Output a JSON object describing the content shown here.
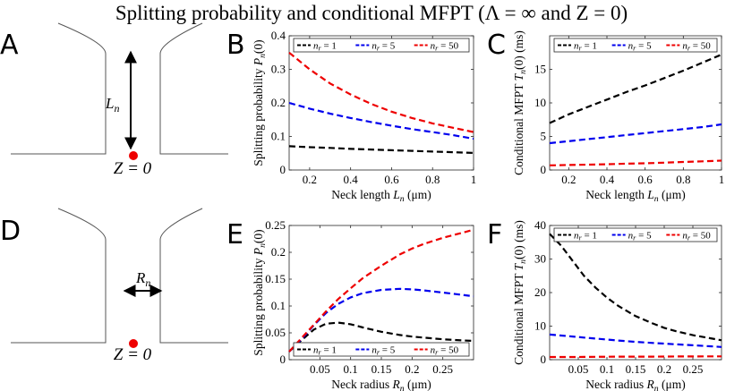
{
  "title": "Splitting probability and conditional MFPT (Λ = ∞ and Z = 0)",
  "diagrams": [
    {
      "letter": "A",
      "arrow": "vertical",
      "dim_label": "L",
      "dim_sub": "n",
      "z_label": "Z = 0"
    },
    {
      "letter": "D",
      "arrow": "horizontal",
      "dim_label": "R",
      "dim_sub": "n",
      "z_label": "Z = 0"
    }
  ],
  "colors": {
    "nr1": "#000000",
    "nr5": "#0000ee",
    "nr50": "#ee0000",
    "dot": "#ee0000",
    "axis": "#262626",
    "outline": "#555555"
  },
  "chart_data": [
    {
      "id": "B",
      "letter": "B",
      "type": "line",
      "xlabel": "Neck length L_n (μm)",
      "ylabel": "Splitting probability P_n(0)",
      "xlim": [
        0.1,
        1
      ],
      "ylim": [
        0,
        0.4
      ],
      "xticks": [
        0.2,
        0.4,
        0.6,
        0.8,
        1
      ],
      "xtick_labels": [
        "0.2",
        "0.4",
        "0.6",
        "0.8",
        "1"
      ],
      "yticks": [
        0,
        0.1,
        0.2,
        0.3,
        0.4
      ],
      "ytick_labels": [
        "0",
        "0.1",
        "0.2",
        "0.3",
        "0.4"
      ],
      "legend": "top",
      "x": [
        0.1,
        0.2,
        0.3,
        0.4,
        0.5,
        0.6,
        0.7,
        0.8,
        0.9,
        1.0
      ],
      "series": [
        {
          "name": "n_r = 1",
          "color": "#000000",
          "values": [
            0.071,
            0.068,
            0.066,
            0.063,
            0.061,
            0.059,
            0.057,
            0.055,
            0.053,
            0.051
          ]
        },
        {
          "name": "n_r = 5",
          "color": "#0000ee",
          "values": [
            0.2,
            0.183,
            0.168,
            0.155,
            0.143,
            0.132,
            0.122,
            0.113,
            0.104,
            0.093
          ]
        },
        {
          "name": "n_r = 50",
          "color": "#ee0000",
          "values": [
            0.35,
            0.3,
            0.258,
            0.225,
            0.197,
            0.174,
            0.155,
            0.139,
            0.126,
            0.113
          ]
        }
      ]
    },
    {
      "id": "C",
      "letter": "C",
      "type": "line",
      "xlabel": "Neck length L_n (μm)",
      "ylabel": "Conditional MFPT T_n(0) (ms)",
      "xlim": [
        0.1,
        1
      ],
      "ylim": [
        0,
        20
      ],
      "xticks": [
        0.2,
        0.4,
        0.6,
        0.8,
        1
      ],
      "xtick_labels": [
        "0.2",
        "0.4",
        "0.6",
        "0.8",
        "1"
      ],
      "yticks": [
        0,
        5,
        10,
        15
      ],
      "ytick_labels": [
        "0",
        "5",
        "10",
        "15"
      ],
      "legend": "top",
      "x": [
        0.1,
        0.2,
        0.3,
        0.4,
        0.5,
        0.6,
        0.7,
        0.8,
        0.9,
        1.0
      ],
      "series": [
        {
          "name": "n_r = 1",
          "color": "#000000",
          "values": [
            7.0,
            8.3,
            9.4,
            10.5,
            11.6,
            12.6,
            13.7,
            14.8,
            16.0,
            17.2
          ]
        },
        {
          "name": "n_r = 5",
          "color": "#0000ee",
          "values": [
            4.0,
            4.3,
            4.6,
            4.9,
            5.2,
            5.5,
            5.8,
            6.1,
            6.4,
            6.8
          ]
        },
        {
          "name": "n_r = 50",
          "color": "#ee0000",
          "values": [
            0.7,
            0.75,
            0.8,
            0.85,
            0.95,
            1.0,
            1.1,
            1.2,
            1.3,
            1.4
          ]
        }
      ]
    },
    {
      "id": "E",
      "letter": "E",
      "type": "line",
      "xlabel": "Neck radius R_n (μm)",
      "ylabel": "Splitting probability P_n(0)",
      "xlim": [
        0,
        0.3
      ],
      "ylim": [
        0,
        0.25
      ],
      "xticks": [
        0.05,
        0.1,
        0.15,
        0.2,
        0.25
      ],
      "xtick_labels": [
        "0.05",
        "0.1",
        "0.15",
        "0.2",
        "0.25"
      ],
      "yticks": [
        0,
        0.05,
        0.1,
        0.15,
        0.2,
        0.25
      ],
      "ytick_labels": [
        "0",
        "0.05",
        "0.1",
        "0.15",
        "0.2",
        "0.25"
      ],
      "legend": "bottom",
      "x": [
        0.0,
        0.02,
        0.04,
        0.06,
        0.08,
        0.1,
        0.12,
        0.15,
        0.18,
        0.2,
        0.22,
        0.25,
        0.28,
        0.3
      ],
      "series": [
        {
          "name": "n_r = 1",
          "color": "#000000",
          "values": [
            0.015,
            0.036,
            0.056,
            0.067,
            0.069,
            0.066,
            0.06,
            0.052,
            0.046,
            0.043,
            0.041,
            0.038,
            0.036,
            0.035
          ]
        },
        {
          "name": "n_r = 5",
          "color": "#0000ee",
          "values": [
            0.015,
            0.038,
            0.064,
            0.087,
            0.104,
            0.116,
            0.124,
            0.13,
            0.132,
            0.131,
            0.129,
            0.125,
            0.121,
            0.118
          ]
        },
        {
          "name": "n_r = 50",
          "color": "#ee0000",
          "values": [
            0.015,
            0.04,
            0.065,
            0.09,
            0.113,
            0.133,
            0.152,
            0.175,
            0.196,
            0.207,
            0.216,
            0.227,
            0.236,
            0.242
          ]
        }
      ]
    },
    {
      "id": "F",
      "letter": "F",
      "type": "line",
      "xlabel": "Neck radius R_n (μm)",
      "ylabel": "Conditional MFPT T_n(0) (ms)",
      "xlim": [
        0,
        0.3
      ],
      "ylim": [
        0,
        40
      ],
      "xticks": [
        0.05,
        0.1,
        0.15,
        0.2,
        0.25
      ],
      "xtick_labels": [
        "0.05",
        "0.1",
        "0.15",
        "0.2",
        "0.25"
      ],
      "yticks": [
        0,
        10,
        20,
        30,
        40
      ],
      "ytick_labels": [
        "0",
        "10",
        "20",
        "30",
        "40"
      ],
      "legend": "top",
      "x": [
        0.0,
        0.02,
        0.04,
        0.06,
        0.08,
        0.1,
        0.12,
        0.15,
        0.18,
        0.2,
        0.22,
        0.25,
        0.28,
        0.3
      ],
      "series": [
        {
          "name": "n_r = 1",
          "color": "#000000",
          "values": [
            37.5,
            34.0,
            29.5,
            25.0,
            21.5,
            18.5,
            16.0,
            13.0,
            10.8,
            9.5,
            8.5,
            7.3,
            6.4,
            5.8
          ]
        },
        {
          "name": "n_r = 5",
          "color": "#0000ee",
          "values": [
            7.5,
            7.2,
            6.9,
            6.6,
            6.3,
            6.0,
            5.7,
            5.3,
            5.0,
            4.8,
            4.6,
            4.3,
            4.0,
            3.8
          ]
        },
        {
          "name": "n_r = 50",
          "color": "#ee0000",
          "values": [
            0.8,
            0.8,
            0.8,
            0.82,
            0.85,
            0.87,
            0.9,
            0.9,
            0.92,
            0.93,
            0.95,
            0.96,
            0.98,
            1.0
          ]
        }
      ]
    }
  ]
}
